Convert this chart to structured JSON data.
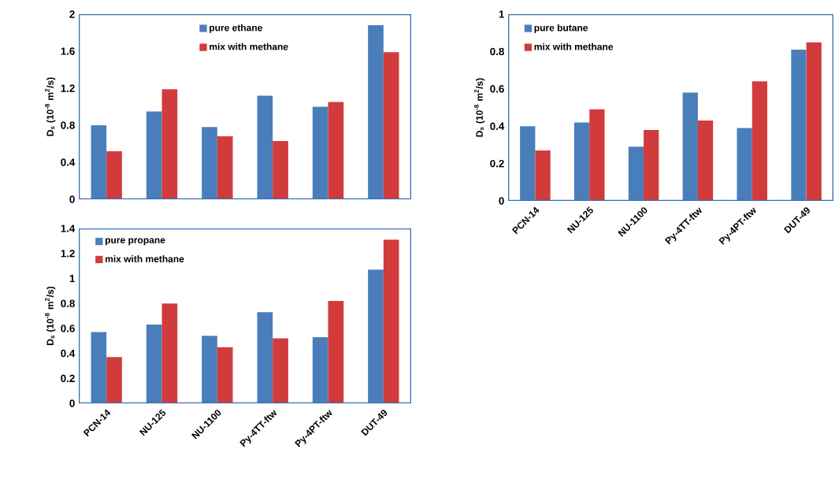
{
  "chart_data": [
    {
      "type": "bar",
      "ylabel": "D$_{s}$ (10$^{-8}$ m$^{2}$/s)",
      "categories": [
        null,
        null,
        null,
        null,
        null,
        null
      ],
      "tick_labels": "y",
      "legend": "top",
      "ylim": [
        0,
        2
      ],
      "yticks": [
        0,
        0.4,
        0.8,
        1.2,
        1.6,
        2
      ],
      "series": [
        {
          "name": "pure ethane",
          "color": "#4a7ebb",
          "values": [
            0.8,
            0.95,
            0.78,
            1.12,
            1.0,
            1.88
          ]
        },
        {
          "name": "mix with methane",
          "color": "#d23b3b",
          "values": [
            0.52,
            1.19,
            0.68,
            0.63,
            1.05,
            1.59
          ]
        }
      ]
    },
    {
      "type": "bar",
      "ylabel": "D$_{s}$ (10$^{-8}$ m$^{2}$/s)",
      "categories": [
        "PCN-14",
        "NU-125",
        "NU-1100",
        "Py-4TT-ftw",
        "Py-4PT-ftw",
        "DUT-49"
      ],
      "legend": "top left",
      "ylim": [
        0,
        1
      ],
      "yticks": [
        0,
        0.2,
        0.4,
        0.6,
        0.8,
        1
      ],
      "series": [
        {
          "name": "pure butane",
          "color": "#4a7ebb",
          "values": [
            0.4,
            0.42,
            0.29,
            0.58,
            0.39,
            0.81
          ]
        },
        {
          "name": "mix with methane",
          "color": "#d23b3b",
          "values": [
            0.27,
            0.49,
            0.38,
            0.43,
            0.64,
            0.85
          ]
        }
      ]
    },
    {
      "type": "bar",
      "ylabel": "D$_{s}$ (10$^{-8}$ m$^{2}$/s)",
      "categories": [
        "PCN-14",
        "NU-125",
        "NU-1100",
        "Py-4TT-ftw",
        "Py-4PT-ftw",
        "DUT-49"
      ],
      "legend": "top left",
      "ylim": [
        0,
        1.4
      ],
      "yticks": [
        0,
        0.2,
        0.4,
        0.6,
        0.8,
        1,
        1.2,
        1.4
      ],
      "series": [
        {
          "name": "pure propane",
          "color": "#4a7ebb",
          "values": [
            0.57,
            0.63,
            0.54,
            0.73,
            0.53,
            1.07
          ]
        },
        {
          "name": "mix with methane",
          "color": "#d23b3b",
          "values": [
            0.37,
            0.8,
            0.45,
            0.52,
            0.82,
            1.31
          ]
        }
      ]
    }
  ]
}
